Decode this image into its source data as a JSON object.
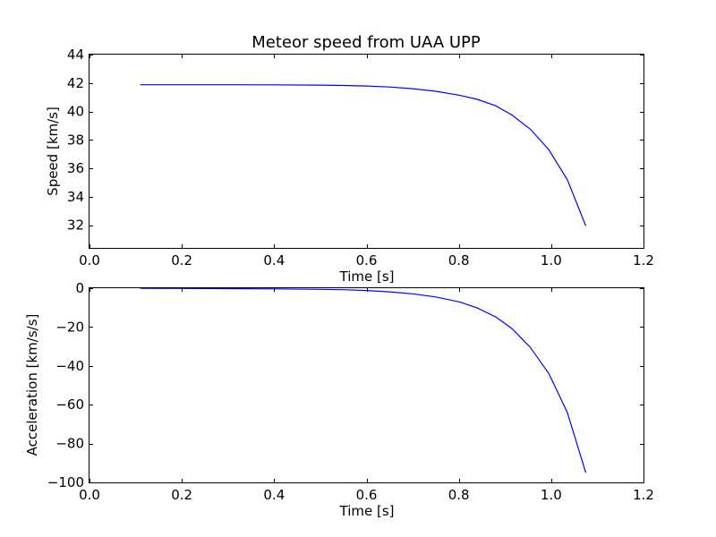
{
  "chart_data": [
    {
      "type": "line",
      "title": "Meteor speed from  UAA UPP",
      "xlabel": "Time [s]",
      "ylabel": "Speed [km/s]",
      "xlim": [
        0.0,
        1.2
      ],
      "ylim": [
        30.4,
        44
      ],
      "xticks": [
        "0.0",
        "0.2",
        "0.4",
        "0.6",
        "0.8",
        "1.0",
        "1.2"
      ],
      "xtick_values": [
        0.0,
        0.2,
        0.4,
        0.6,
        0.8,
        1.0,
        1.2
      ],
      "yticks": [
        "32",
        "34",
        "36",
        "38",
        "40",
        "42",
        "44"
      ],
      "ytick_values": [
        32,
        34,
        36,
        38,
        40,
        42,
        44
      ],
      "grid": false,
      "color": "#0000ff",
      "series": [
        {
          "x": [
            0.11,
            0.2,
            0.3,
            0.4,
            0.5,
            0.55,
            0.6,
            0.65,
            0.7,
            0.75,
            0.8,
            0.84,
            0.88,
            0.915,
            0.955,
            0.995,
            1.035,
            1.075
          ],
          "values": [
            41.88,
            41.88,
            41.88,
            41.87,
            41.85,
            41.83,
            41.79,
            41.72,
            41.6,
            41.42,
            41.15,
            40.85,
            40.4,
            39.75,
            38.75,
            37.3,
            35.2,
            31.95
          ]
        }
      ]
    },
    {
      "type": "line",
      "title": "",
      "xlabel": "Time [s]",
      "ylabel": "Acceleration [km/s/s]",
      "xlim": [
        0.0,
        1.2
      ],
      "ylim": [
        -100,
        0
      ],
      "xticks": [
        "0.0",
        "0.2",
        "0.4",
        "0.6",
        "0.8",
        "1.0",
        "1.2"
      ],
      "xtick_values": [
        0.0,
        0.2,
        0.4,
        0.6,
        0.8,
        1.0,
        1.2
      ],
      "yticks": [
        "−100",
        "−80",
        "−60",
        "−40",
        "−20",
        "0"
      ],
      "ytick_values": [
        -100,
        -80,
        -60,
        -40,
        -20,
        0
      ],
      "grid": false,
      "color": "#0000ff",
      "series": [
        {
          "x": [
            0.11,
            0.2,
            0.3,
            0.4,
            0.5,
            0.55,
            0.6,
            0.65,
            0.7,
            0.75,
            0.8,
            0.84,
            0.88,
            0.915,
            0.955,
            0.995,
            1.035,
            1.075
          ],
          "values": [
            -0.1,
            -0.15,
            -0.25,
            -0.35,
            -0.6,
            -0.8,
            -1.2,
            -1.9,
            -2.9,
            -4.5,
            -7.0,
            -10.2,
            -14.8,
            -20.8,
            -30.5,
            -44.0,
            -64.0,
            -95.0
          ]
        }
      ]
    }
  ]
}
